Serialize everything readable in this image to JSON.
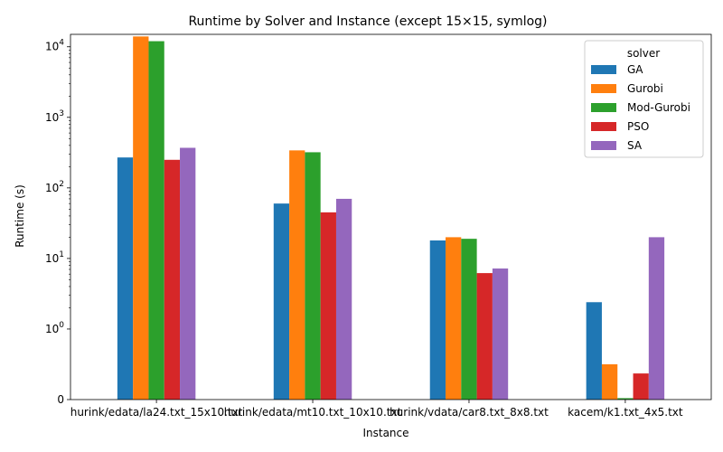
{
  "chart_data": {
    "type": "bar",
    "title": "Runtime by Solver and Instance (except 15×15, symlog)",
    "xlabel": "Instance",
    "ylabel": "Runtime (s)",
    "yscale": "symlog",
    "ylim": [
      0,
      15000
    ],
    "yticks": [
      {
        "value": 0,
        "label": "0"
      },
      {
        "value": 1,
        "base": "10",
        "exp": "0"
      },
      {
        "value": 10,
        "base": "10",
        "exp": "1"
      },
      {
        "value": 100,
        "base": "10",
        "exp": "2"
      },
      {
        "value": 1000,
        "base": "10",
        "exp": "3"
      },
      {
        "value": 10000,
        "base": "10",
        "exp": "4"
      }
    ],
    "categories": [
      "hurink/edata/la24.txt_15x10.txt",
      "hurink/edata/mt10.txt_10x10.txt",
      "hurink/vdata/car8.txt_8x8.txt",
      "kacem/k1.txt_4x5.txt"
    ],
    "legend": {
      "title": "solver",
      "position": "upper right"
    },
    "series": [
      {
        "name": "GA",
        "color": "#1f77b4",
        "values": [
          270,
          60,
          18,
          2.4
        ]
      },
      {
        "name": "Gurobi",
        "color": "#ff7f0e",
        "values": [
          14000,
          340,
          20,
          0.5
        ]
      },
      {
        "name": "Mod-Gurobi",
        "color": "#2ca02c",
        "values": [
          12000,
          320,
          19,
          0.02
        ]
      },
      {
        "name": "PSO",
        "color": "#d62728",
        "values": [
          250,
          45,
          6.2,
          0.37
        ]
      },
      {
        "name": "SA",
        "color": "#9467bd",
        "values": [
          370,
          70,
          7.2,
          20
        ]
      }
    ]
  }
}
